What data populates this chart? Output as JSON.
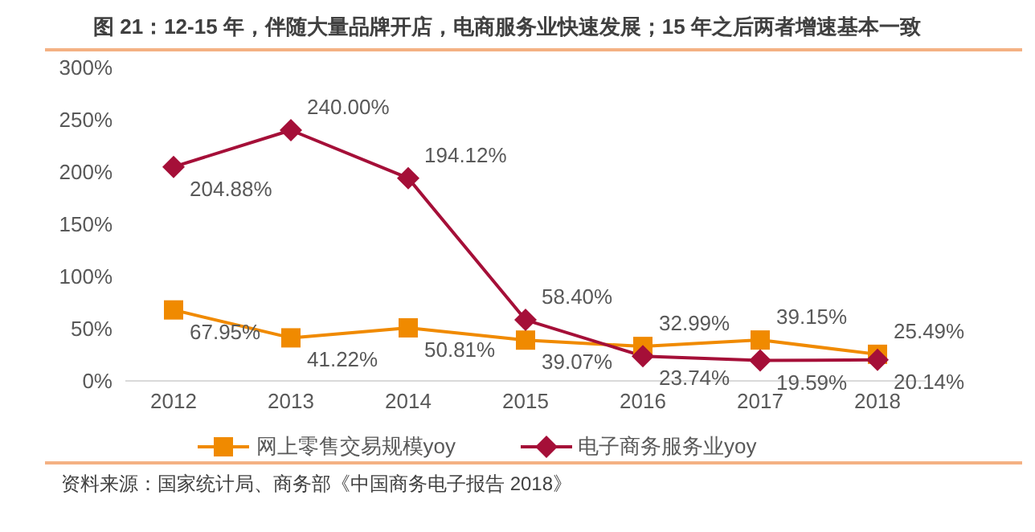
{
  "chart_data": {
    "type": "line",
    "title": "图 21：12-15 年，伴随大量品牌开店，电商服务业快速发展；15 年之后两者增速基本一致",
    "categories": [
      "2012",
      "2013",
      "2014",
      "2015",
      "2016",
      "2017",
      "2018"
    ],
    "series": [
      {
        "name": "网上零售交易规模yoy",
        "color": "#f08a00",
        "marker": "square",
        "values": [
          67.95,
          41.22,
          50.81,
          39.07,
          32.99,
          39.15,
          25.49
        ],
        "value_labels": [
          "67.95%",
          "41.22%",
          "50.81%",
          "39.07%",
          "32.99%",
          "39.15%",
          "25.49%"
        ]
      },
      {
        "name": "电子商务服务业yoy",
        "color": "#a50f38",
        "marker": "diamond",
        "values": [
          204.88,
          240.0,
          194.12,
          58.4,
          23.74,
          19.59,
          20.14
        ],
        "value_labels": [
          "204.88%",
          "240.00%",
          "194.12%",
          "58.40%",
          "23.74%",
          "19.59%",
          "20.14%"
        ]
      }
    ],
    "ylim": [
      0,
      300
    ],
    "yticks": [
      {
        "value": 0,
        "label": "0%"
      },
      {
        "value": 50,
        "label": "50%"
      },
      {
        "value": 100,
        "label": "100%"
      },
      {
        "value": 150,
        "label": "150%"
      },
      {
        "value": 200,
        "label": "200%"
      },
      {
        "value": 250,
        "label": "250%"
      },
      {
        "value": 300,
        "label": "300%"
      }
    ],
    "grid": false,
    "legend": "bottom",
    "line_style": "solid",
    "annotations": [
      "资料来源：国家统计局、商务部《中国商务电子报告 2018》"
    ]
  }
}
